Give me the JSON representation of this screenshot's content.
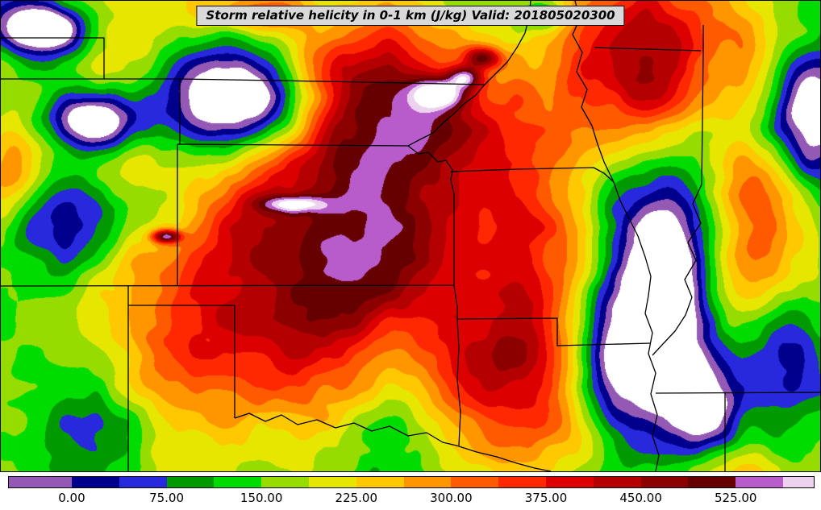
{
  "title": "Storm relative helicity in 0-1 km (J/kg) Valid: 201805020300",
  "colorbar": {
    "tick_labels": [
      "0.00",
      "75.00",
      "150.00",
      "225.00",
      "300.00",
      "375.00",
      "450.00",
      "525.00"
    ],
    "tick_values": [
      0,
      75,
      150,
      225,
      300,
      375,
      450,
      525
    ],
    "value_domain": [
      -49.7,
      586.7
    ],
    "band_levels": [
      -37.5,
      0,
      37.5,
      75,
      112.5,
      150,
      187.5,
      225,
      262.5,
      300,
      337.5,
      375,
      412.5,
      450,
      487.5,
      525,
      562.5,
      600
    ],
    "band_colors": [
      "#ffffff",
      "#9459b4",
      "#00008c",
      "#2828dc",
      "#009a00",
      "#00dc00",
      "#96dc00",
      "#e6e600",
      "#ffc800",
      "#ff9600",
      "#ff5a00",
      "#ff2800",
      "#dc0000",
      "#b40000",
      "#8c0000",
      "#660000",
      "#b85ccc",
      "#ecd2ee",
      "#ffffff"
    ],
    "border_color": "#000000",
    "title_bg_color": "#d9d9d9"
  }
}
